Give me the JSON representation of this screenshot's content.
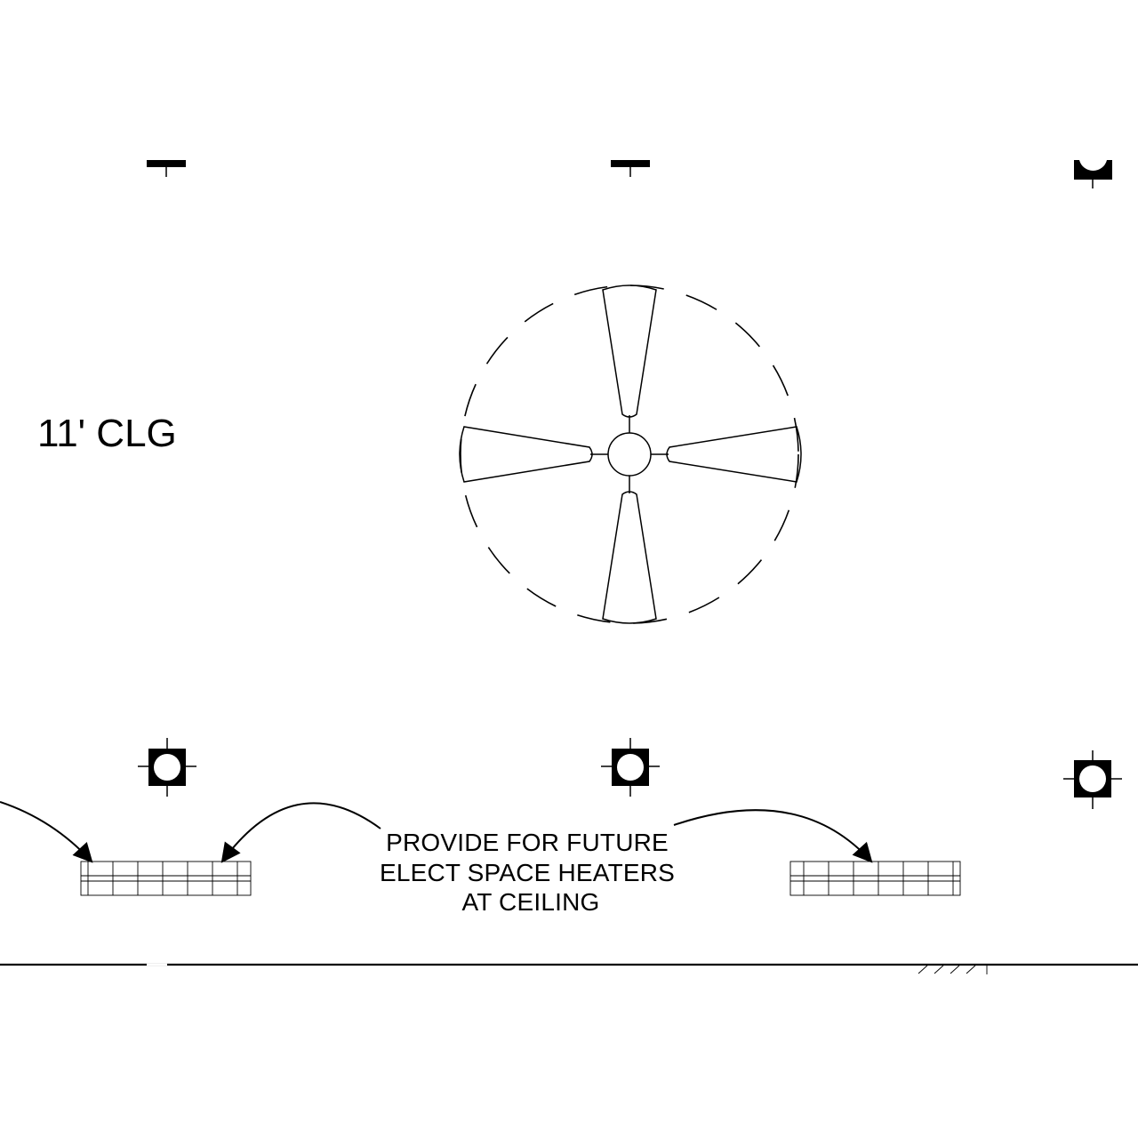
{
  "drawing": {
    "ceiling_height_label": "11' CLG",
    "note": {
      "lines": [
        "PROVIDE FOR FUTURE",
        "ELECT SPACE HEATERS",
        "AT CEILING"
      ]
    },
    "symbols": {
      "ceiling_fan": "ceiling-fan-icon",
      "downlight": "recessed-downlight-icon",
      "heater": "electric-space-heater-icon",
      "leader_arrow": "leader-arrow-icon"
    },
    "colors": {
      "line": "#000000",
      "background": "#ffffff"
    }
  }
}
